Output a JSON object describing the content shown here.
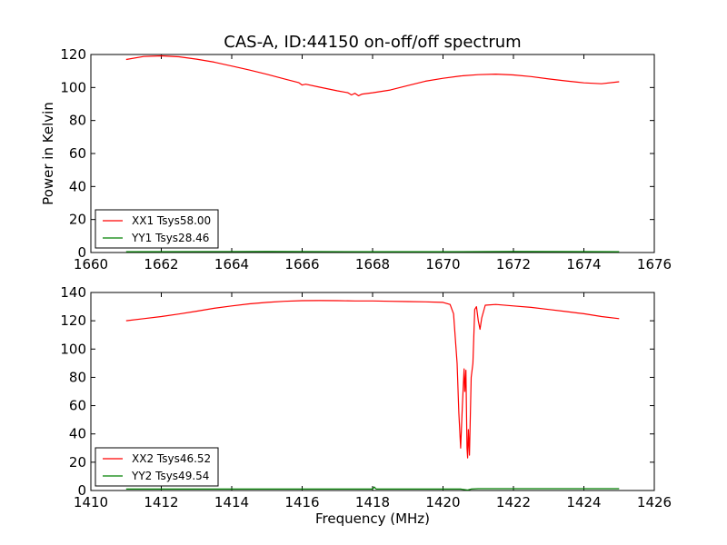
{
  "figure": {
    "title": "CAS-A, ID:44150 on-off/off spectrum"
  },
  "chart_data": [
    {
      "type": "line",
      "title": "CAS-A, ID:44150 on-off/off spectrum",
      "xlabel": "",
      "ylabel": "Power in Kelvin",
      "xlim": [
        1660,
        1676
      ],
      "ylim": [
        0,
        120
      ],
      "xticks": [
        1660,
        1662,
        1664,
        1666,
        1668,
        1670,
        1672,
        1674,
        1676
      ],
      "yticks": [
        0,
        20,
        40,
        60,
        80,
        100,
        120
      ],
      "grid": false,
      "legend_position": "lower-left",
      "series": [
        {
          "name": "XX1 Tsys58.00",
          "color": "#ff0000",
          "x": [
            1661.0,
            1661.5,
            1662.0,
            1662.5,
            1663.0,
            1663.5,
            1664.0,
            1664.5,
            1665.0,
            1665.5,
            1665.9,
            1666.0,
            1666.1,
            1666.5,
            1667.0,
            1667.3,
            1667.4,
            1667.5,
            1667.6,
            1667.7,
            1668.0,
            1668.5,
            1669.0,
            1669.5,
            1670.0,
            1670.5,
            1671.0,
            1671.5,
            1672.0,
            1672.5,
            1673.0,
            1673.5,
            1674.0,
            1674.5,
            1675.0
          ],
          "y": [
            117,
            118.8,
            119.2,
            118.6,
            117.2,
            115.4,
            113.0,
            110.6,
            108.0,
            105.2,
            103.0,
            101.5,
            102.0,
            100.2,
            98.0,
            96.8,
            95.5,
            96.5,
            95.0,
            96.0,
            96.8,
            98.5,
            101.2,
            103.8,
            105.6,
            107.0,
            107.8,
            108.1,
            107.6,
            106.6,
            105.2,
            104.0,
            102.8,
            102.3,
            103.5
          ]
        },
        {
          "name": "YY1 Tsys28.46",
          "color": "#008000",
          "x": [
            1661.0,
            1665.0,
            1668.0,
            1670.0,
            1672.0,
            1675.0
          ],
          "y": [
            0.5,
            0.6,
            0.5,
            0.5,
            0.6,
            0.5
          ]
        }
      ]
    },
    {
      "type": "line",
      "title": "",
      "xlabel": "Frequency (MHz)",
      "ylabel": "",
      "xlim": [
        1410,
        1426
      ],
      "ylim": [
        0,
        140
      ],
      "xticks": [
        1410,
        1412,
        1414,
        1416,
        1418,
        1420,
        1422,
        1424,
        1426
      ],
      "yticks": [
        0,
        20,
        40,
        60,
        80,
        100,
        120,
        140
      ],
      "grid": false,
      "legend_position": "lower-left",
      "series": [
        {
          "name": "XX2 Tsys46.52",
          "color": "#ff0000",
          "x": [
            1411.0,
            1411.5,
            1412.0,
            1412.5,
            1413.0,
            1413.5,
            1414.0,
            1414.5,
            1415.0,
            1415.5,
            1416.0,
            1416.5,
            1417.0,
            1417.5,
            1418.0,
            1418.5,
            1419.0,
            1419.5,
            1420.0,
            1420.2,
            1420.3,
            1420.4,
            1420.45,
            1420.5,
            1420.55,
            1420.6,
            1420.62,
            1420.65,
            1420.68,
            1420.7,
            1420.72,
            1420.75,
            1420.8,
            1420.85,
            1420.9,
            1420.95,
            1421.0,
            1421.05,
            1421.1,
            1421.2,
            1421.5,
            1422.0,
            1422.5,
            1423.0,
            1423.5,
            1424.0,
            1424.5,
            1425.0
          ],
          "y": [
            120,
            121.5,
            123,
            124.8,
            126.8,
            128.8,
            130.5,
            132.0,
            133.0,
            133.8,
            134.2,
            134.3,
            134.2,
            134.0,
            134.0,
            133.8,
            133.6,
            133.4,
            133.0,
            131.5,
            125,
            90,
            55,
            30,
            60,
            86,
            70,
            85,
            30,
            23,
            43,
            25,
            80,
            90,
            128,
            130,
            120,
            114,
            122,
            131,
            131.5,
            130.5,
            129.5,
            128,
            126.5,
            125,
            123,
            121.5
          ]
        },
        {
          "name": "YY2 Tsys49.54",
          "color": "#008000",
          "x": [
            1411.0,
            1414.0,
            1417.0,
            1418.0,
            1418.05,
            1418.1,
            1419.0,
            1420.0,
            1420.5,
            1420.7,
            1420.8,
            1421.0,
            1423.0,
            1425.0
          ],
          "y": [
            1.0,
            1.0,
            1.0,
            1.0,
            2.5,
            1.0,
            1.0,
            1.0,
            1.0,
            0.3,
            1.0,
            1.3,
            1.3,
            1.3
          ]
        }
      ]
    }
  ]
}
